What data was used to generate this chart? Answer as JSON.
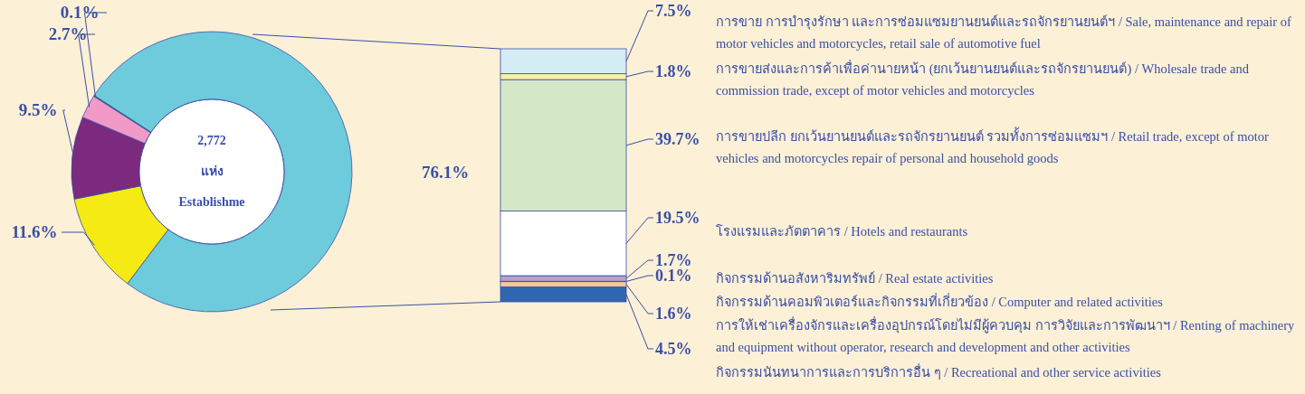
{
  "chart_data": [
    {
      "type": "donut",
      "categories": [
        null,
        null,
        null,
        null,
        null
      ],
      "values": [
        76.1,
        11.6,
        9.5,
        2.7,
        0.1
      ],
      "colors": [
        "#6ecbdc",
        "#f5ea14",
        "#7b2a7e",
        "#f19ac8",
        "#4a9a3a"
      ],
      "value_labels": [
        "76.1%",
        "11.6%",
        "9.5%",
        "2.7%",
        "0.1%"
      ],
      "annotations": [
        "2,772",
        "แห่ง",
        "Establishme"
      ]
    },
    {
      "type": "bar",
      "stacked": true,
      "categories": [
        null
      ],
      "series": [
        {
          "color": "#2f66b0",
          "values": [
            4.5
          ],
          "value_labels": [
            "4.5%"
          ]
        },
        {
          "color": "#fac896",
          "values": [
            1.6
          ],
          "value_labels": [
            "1.6%"
          ]
        },
        {
          "color": "#7a4a6a",
          "values": [
            0.1
          ],
          "value_labels": [
            "0.1%"
          ]
        },
        {
          "color": "#b8a0cc",
          "values": [
            1.7
          ],
          "value_labels": [
            "1.7%"
          ]
        },
        {
          "color": "#ffffff",
          "values": [
            19.5
          ],
          "value_labels": [
            "19.5%"
          ]
        },
        {
          "color": "#d3e8c6",
          "values": [
            39.7
          ],
          "value_labels": [
            "39.7%"
          ]
        },
        {
          "color": "#f8f0a8",
          "values": [
            1.8
          ],
          "value_labels": [
            "1.8%"
          ]
        },
        {
          "color": "#d4ecf4",
          "values": [
            7.5
          ],
          "value_labels": [
            "7.5%"
          ]
        }
      ],
      "annotations": [
        "การขาย การบำรุงรักษา และการซ่อมแซมยานยนต์และรถจักรยานยนต์ฯ / Sale, maintenance and repair of motor vehicles and motorcycles, retail sale of  automotive fuel",
        "การขายส่งและการค้าเพื่อค่านายหน้า (ยกเว้นยานยนต์และรถจักรยานยนต์) / Wholesale trade and commission trade, except of motor vehicles and motorcycles",
        "การขายปลีก ยกเว้นยานยนต์และรถจักรยานยนต์ รวมทั้งการซ่อมแซมฯ / Retail trade, except of motor vehicles and motorcycles repair of personal and household goods",
        "โรงแรมและภัตตาคาร / Hotels and restaurants",
        "กิจกรรมด้านอสังหาริมทรัพย์ / Real estate activities",
        "กิจกรรมด้านคอมพิวเตอร์และกิจกรรมที่เกี่ยวข้อง / Computer and related activities",
        "การให้เช่าเครื่องจักรและเครื่องอุปกรณ์โดยไม่มีผู้ควบคุม การวิจัยและการพัฒนาฯ / Renting of machinery and equipment without operator, research and development and other activities",
        "กิจกรรมนันทนาการและการบริการอื่น ๆ / Recreational and other service activities"
      ]
    }
  ]
}
